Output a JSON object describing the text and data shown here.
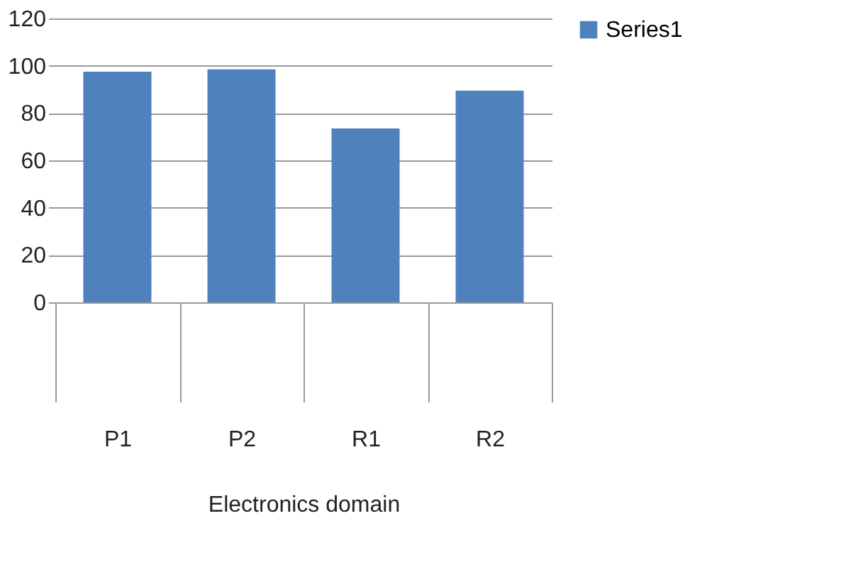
{
  "chart_data": {
    "type": "bar",
    "categories": [
      "P1",
      "P2",
      "R1",
      "R2"
    ],
    "xlabel": "Electronics domain",
    "series": [
      {
        "name": "Series1",
        "color": "#4f81bd",
        "values": [
          97.5,
          98.5,
          73.5,
          89.5
        ]
      }
    ],
    "ylim": [
      0,
      120
    ],
    "yticks": [
      0,
      20,
      40,
      60,
      80,
      100,
      120
    ],
    "grid": "y",
    "legend": "right"
  }
}
